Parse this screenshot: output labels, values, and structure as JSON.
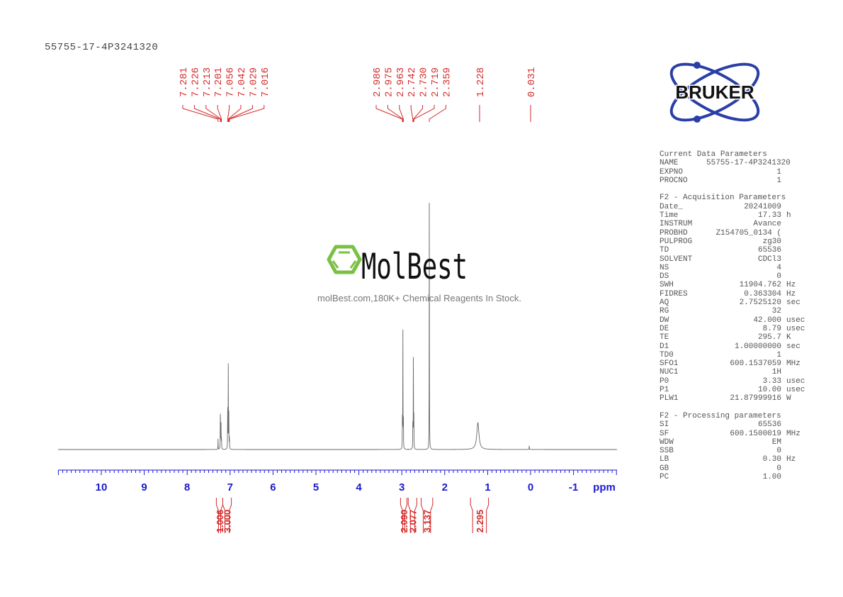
{
  "title": "55755-17-4P3241320",
  "chart_data": {
    "type": "line",
    "title": "55755-17-4P3241320",
    "xlabel": "ppm",
    "ylabel": "",
    "xlim": [
      11.0,
      -2.0
    ],
    "x_reversed": true,
    "grid": false,
    "xticks": [
      10,
      9,
      8,
      7,
      6,
      5,
      4,
      3,
      2,
      1,
      0,
      -1
    ],
    "xtick_labels": [
      "10",
      "9",
      "8",
      "7",
      "6",
      "5",
      "4",
      "3",
      "2",
      "1",
      "0",
      "-1"
    ],
    "peaks": [
      {
        "ppm": 7.281,
        "height": 0.04
      },
      {
        "ppm": 7.226,
        "height": 0.19
      },
      {
        "ppm": 7.213,
        "height": 0.14
      },
      {
        "ppm": 7.201,
        "height": 0.06
      },
      {
        "ppm": 7.056,
        "height": 0.2
      },
      {
        "ppm": 7.042,
        "height": 0.31
      },
      {
        "ppm": 7.029,
        "height": 0.14
      },
      {
        "ppm": 7.016,
        "height": 0.05
      },
      {
        "ppm": 2.986,
        "height": 0.12
      },
      {
        "ppm": 2.975,
        "height": 0.46
      },
      {
        "ppm": 2.963,
        "height": 0.12
      },
      {
        "ppm": 2.742,
        "height": 0.12
      },
      {
        "ppm": 2.73,
        "height": 0.39
      },
      {
        "ppm": 2.719,
        "height": 0.12
      },
      {
        "ppm": 2.359,
        "height": 1.0
      },
      {
        "ppm": 1.228,
        "height": 0.1,
        "broad": true
      },
      {
        "ppm": 0.031,
        "height": 0.02
      }
    ],
    "peak_labels": [
      "7.281",
      "7.226",
      "7.213",
      "7.201",
      "7.056",
      "7.042",
      "7.029",
      "7.016",
      "2.986",
      "2.975",
      "2.963",
      "2.742",
      "2.730",
      "2.719",
      "2.359",
      "1.228",
      "0.031"
    ],
    "integrals": [
      {
        "from": 7.32,
        "to": 7.17,
        "value": "1.006"
      },
      {
        "from": 7.17,
        "to": 6.97,
        "value": "3.000"
      },
      {
        "from": 3.03,
        "to": 2.88,
        "value": "2.090"
      },
      {
        "from": 2.85,
        "to": 2.65,
        "value": "2.077"
      },
      {
        "from": 2.55,
        "to": 2.28,
        "value": "3.137"
      },
      {
        "from": 1.4,
        "to": 0.98,
        "value": "2.295"
      }
    ],
    "colors": {
      "spectrum": "#666666",
      "peak_labels": "#d42a2a",
      "integrals": "#d42a2a",
      "axis": "#1a1ad0"
    }
  },
  "params": {
    "sections": [
      {
        "header": "Current Data Parameters",
        "rows": [
          {
            "k": "NAME",
            "v": "55755-17-4P3241320",
            "u": ""
          },
          {
            "k": "EXPNO",
            "v": "1",
            "u": ""
          },
          {
            "k": "PROCNO",
            "v": "1",
            "u": ""
          }
        ]
      },
      {
        "header": "F2 - Acquisition Parameters",
        "rows": [
          {
            "k": "Date_",
            "v": "20241009",
            "u": ""
          },
          {
            "k": "Time",
            "v": "17.33",
            "u": "h"
          },
          {
            "k": "INSTRUM",
            "v": "Avance",
            "u": ""
          },
          {
            "k": "PROBHD",
            "v": "Z154705_0134 (",
            "u": ""
          },
          {
            "k": "PULPROG",
            "v": "zg30",
            "u": ""
          },
          {
            "k": "TD",
            "v": "65536",
            "u": ""
          },
          {
            "k": "SOLVENT",
            "v": "CDCl3",
            "u": ""
          },
          {
            "k": "NS",
            "v": "4",
            "u": ""
          },
          {
            "k": "DS",
            "v": "0",
            "u": ""
          },
          {
            "k": "SWH",
            "v": "11904.762",
            "u": "Hz"
          },
          {
            "k": "FIDRES",
            "v": "0.363304",
            "u": "Hz"
          },
          {
            "k": "AQ",
            "v": "2.7525120",
            "u": "sec"
          },
          {
            "k": "RG",
            "v": "32",
            "u": ""
          },
          {
            "k": "DW",
            "v": "42.000",
            "u": "usec"
          },
          {
            "k": "DE",
            "v": "8.79",
            "u": "usec"
          },
          {
            "k": "TE",
            "v": "295.7",
            "u": "K"
          },
          {
            "k": "D1",
            "v": "1.00000000",
            "u": "sec"
          },
          {
            "k": "TD0",
            "v": "1",
            "u": ""
          },
          {
            "k": "SFO1",
            "v": "600.1537059",
            "u": "MHz"
          },
          {
            "k": "NUC1",
            "v": "1H",
            "u": ""
          },
          {
            "k": "P0",
            "v": "3.33",
            "u": "usec"
          },
          {
            "k": "P1",
            "v": "10.00",
            "u": "usec"
          },
          {
            "k": "PLW1",
            "v": "21.87999916",
            "u": "W"
          }
        ]
      },
      {
        "header": "F2 - Processing parameters",
        "rows": [
          {
            "k": "SI",
            "v": "65536",
            "u": ""
          },
          {
            "k": "SF",
            "v": "600.1500019",
            "u": "MHz"
          },
          {
            "k": "WDW",
            "v": "EM",
            "u": ""
          },
          {
            "k": "SSB",
            "v": "0",
            "u": ""
          },
          {
            "k": "LB",
            "v": "0.30",
            "u": "Hz"
          },
          {
            "k": "GB",
            "v": "0",
            "u": ""
          },
          {
            "k": "PC",
            "v": "1.00",
            "u": ""
          }
        ]
      }
    ]
  },
  "logos": {
    "bruker": "BRUKER",
    "molbest": "MolBest",
    "molbest_tagline": "molBest.com,180K+ Chemical Reagents In Stock."
  }
}
